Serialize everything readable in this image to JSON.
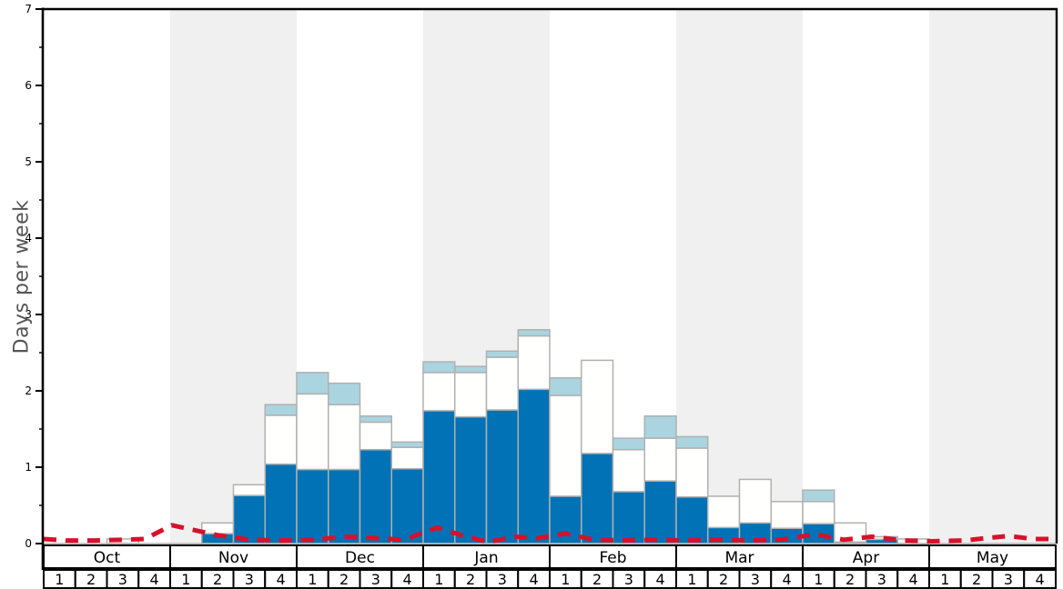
{
  "chart_data": {
    "type": "bar",
    "title": "",
    "ylabel": "Days per week",
    "ylim": [
      0,
      7
    ],
    "yticks": [
      0,
      1,
      2,
      3,
      4,
      5,
      6,
      7
    ],
    "minor_tick_step": 0.5,
    "legend": "none",
    "grid": "off",
    "months": [
      {
        "label": "Oct",
        "shaded": false
      },
      {
        "label": "Nov",
        "shaded": true
      },
      {
        "label": "Dec",
        "shaded": false
      },
      {
        "label": "Jan",
        "shaded": true
      },
      {
        "label": "Feb",
        "shaded": false
      },
      {
        "label": "Mar",
        "shaded": true
      },
      {
        "label": "Apr",
        "shaded": false
      },
      {
        "label": "May",
        "shaded": true
      }
    ],
    "week_labels": [
      "1",
      "2",
      "3",
      "4"
    ],
    "stacked_bar_series": [
      {
        "name": "dark-blue-segment",
        "color": "#0072b5",
        "values": [
          0,
          0,
          0,
          0,
          0,
          0.13,
          0.63,
          1.04,
          0.97,
          0.97,
          1.23,
          0.98,
          1.74,
          1.66,
          1.75,
          2.02,
          0.62,
          1.18,
          0.68,
          0.82,
          0.61,
          0.21,
          0.27,
          0.2,
          0.26,
          0.02,
          0.055,
          0,
          0,
          0,
          0,
          0
        ]
      },
      {
        "name": "white-segment",
        "color": "#fffffe",
        "values": [
          0,
          0,
          0.06,
          0,
          0,
          0.14,
          0.14,
          0.64,
          0.99,
          0.85,
          0.36,
          0.28,
          0.5,
          0.58,
          0.69,
          0.7,
          1.32,
          1.22,
          0.55,
          0.56,
          0.64,
          0.41,
          0.57,
          0.35,
          0.29,
          0.25,
          0.035,
          0.06,
          0,
          0,
          0,
          0
        ]
      },
      {
        "name": "light-blue-segment",
        "color": "#aad4df",
        "values": [
          0,
          0,
          0,
          0,
          0,
          0,
          0,
          0.14,
          0.28,
          0.28,
          0.08,
          0.07,
          0.14,
          0.08,
          0.08,
          0.08,
          0.23,
          0,
          0.15,
          0.29,
          0.15,
          0,
          0,
          0,
          0.15,
          0,
          0,
          0,
          0,
          0,
          0,
          0
        ]
      }
    ],
    "line_series": {
      "name": "red-dashed-line",
      "color": "#d8112b",
      "style": "dashed",
      "points_week_value": [
        [
          0,
          0.06
        ],
        [
          0.7,
          0.04
        ],
        [
          1.6,
          0.04
        ],
        [
          2.5,
          0.05
        ],
        [
          3.2,
          0.06
        ],
        [
          4.05,
          0.24
        ],
        [
          4.6,
          0.19
        ],
        [
          5.5,
          0.11
        ],
        [
          6.5,
          0.05
        ],
        [
          7.5,
          0.04
        ],
        [
          8.5,
          0.05
        ],
        [
          9.6,
          0.09
        ],
        [
          10.5,
          0.07
        ],
        [
          11.4,
          0.05
        ],
        [
          12.45,
          0.21
        ],
        [
          13.2,
          0.11
        ],
        [
          14.05,
          0.02
        ],
        [
          14.9,
          0.09
        ],
        [
          15.6,
          0.07
        ],
        [
          16.5,
          0.13
        ],
        [
          17.4,
          0.05
        ],
        [
          18.3,
          0.04
        ],
        [
          19.3,
          0.05
        ],
        [
          20.3,
          0.04
        ],
        [
          21.3,
          0.05
        ],
        [
          22.3,
          0.04
        ],
        [
          23.3,
          0.05
        ],
        [
          24.4,
          0.12
        ],
        [
          25.3,
          0.05
        ],
        [
          26.2,
          0.09
        ],
        [
          27.2,
          0.04
        ],
        [
          28.1,
          0.03
        ],
        [
          29.1,
          0.04
        ],
        [
          30.5,
          0.1
        ],
        [
          31.3,
          0.06
        ],
        [
          32,
          0.06
        ]
      ]
    },
    "colors": {
      "band_gray": "#f0f0f0",
      "bar_border": "#b0b0b0",
      "baseline_gray": "#b0b0b0",
      "frame_black": "#000000",
      "ylabel_gray": "#555555"
    }
  }
}
